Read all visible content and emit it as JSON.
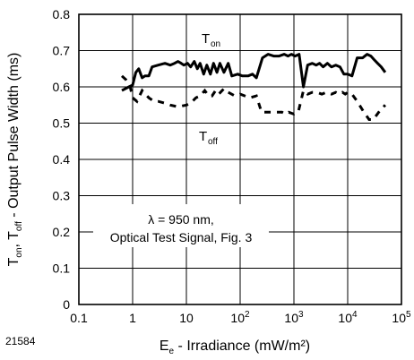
{
  "figure_number": "21584",
  "chart_data": {
    "type": "line",
    "title": "",
    "xlabel": {
      "symbol": "E",
      "sub": "e",
      "rest": " - Irradiance (mW/m²)"
    },
    "ylabel": {
      "p1": "T",
      "sub1": "on",
      "p2": ", T",
      "sub2": "off",
      "p3": " - Output Pulse Width (ms)"
    },
    "x_scale": "log",
    "xlim": [
      0.1,
      100000
    ],
    "ylim": [
      0,
      0.8
    ],
    "x_ticks": [
      {
        "value": 0.1,
        "base": "0.1",
        "exp": ""
      },
      {
        "value": 1,
        "base": "1",
        "exp": ""
      },
      {
        "value": 10,
        "base": "10",
        "exp": ""
      },
      {
        "value": 100,
        "base": "10",
        "exp": "2"
      },
      {
        "value": 1000,
        "base": "10",
        "exp": "3"
      },
      {
        "value": 10000,
        "base": "10",
        "exp": "4"
      },
      {
        "value": 100000,
        "base": "10",
        "exp": "5"
      }
    ],
    "y_ticks": [
      0,
      0.1,
      0.2,
      0.3,
      0.4,
      0.5,
      0.6,
      0.7,
      0.8
    ],
    "y_tick_labels": [
      "0",
      "0.1",
      "0.2",
      "0.3",
      "0.4",
      "0.5",
      "0.6",
      "0.7",
      "0.8"
    ],
    "grid": true,
    "annotation": {
      "line1": "λ = 950 nm,",
      "line2": "Optical Test Signal, Fig. 3"
    },
    "series": [
      {
        "label_main": "T",
        "label_sub": "on",
        "style": "solid",
        "color": "#000000",
        "x": [
          0.63,
          0.85,
          1.0,
          1.15,
          1.3,
          1.5,
          1.7,
          2.0,
          2.3,
          3.0,
          4.0,
          5.0,
          6.0,
          7.0,
          8.0,
          9.0,
          10.5,
          12.0,
          14.0,
          16.0,
          18.0,
          21.0,
          24.0,
          28.0,
          32.0,
          37.0,
          42.0,
          50.0,
          60.0,
          70.0,
          90.0,
          110.0,
          140.0,
          170.0,
          200.0,
          260.0,
          330.0,
          420.0,
          530.0,
          660.0,
          780.0,
          900.0,
          1050.0,
          1250.0,
          1500.0,
          1800.0,
          2200.0,
          2600.0,
          3000.0,
          3500.0,
          4200.0,
          5000.0,
          6000.0,
          7200.0,
          8500.0,
          10000.0,
          12000.0,
          15000.0,
          19000.0,
          23000.0,
          27000.0,
          31000.0,
          36000.0,
          42000.0,
          50000.0
        ],
        "y": [
          0.59,
          0.6,
          0.605,
          0.64,
          0.65,
          0.625,
          0.63,
          0.63,
          0.655,
          0.66,
          0.665,
          0.66,
          0.665,
          0.67,
          0.665,
          0.66,
          0.665,
          0.655,
          0.67,
          0.65,
          0.665,
          0.635,
          0.66,
          0.635,
          0.665,
          0.64,
          0.665,
          0.64,
          0.665,
          0.63,
          0.635,
          0.63,
          0.63,
          0.635,
          0.625,
          0.68,
          0.69,
          0.685,
          0.685,
          0.69,
          0.685,
          0.69,
          0.685,
          0.69,
          0.6,
          0.66,
          0.665,
          0.66,
          0.665,
          0.655,
          0.665,
          0.655,
          0.66,
          0.655,
          0.635,
          0.635,
          0.63,
          0.68,
          0.68,
          0.69,
          0.685,
          0.675,
          0.665,
          0.655,
          0.64
        ]
      },
      {
        "label_main": "T",
        "label_sub": "off",
        "style": "dashed",
        "color": "#000000",
        "x": [
          0.63,
          0.75,
          0.9,
          1.0,
          1.2,
          1.5,
          2.0,
          2.5,
          3.0,
          4.0,
          5.0,
          7.0,
          10.0,
          12.0,
          15.0,
          18.0,
          22.0,
          26.0,
          30.0,
          35.0,
          40.0,
          50.0,
          60.0,
          80.0,
          100.0,
          150.0,
          200.0,
          250.0,
          300.0,
          400.0,
          500.0,
          600.0,
          700.0,
          800.0,
          1000.0,
          1200.0,
          1500.0,
          1800.0,
          2200.0,
          2700.0,
          3300.0,
          4000.0,
          5000.0,
          6000.0,
          7000.0,
          8000.0,
          9000.0,
          10000.0,
          12000.0,
          15000.0,
          20000.0,
          25000.0,
          30000.0,
          40000.0,
          50000.0
        ],
        "y": [
          0.63,
          0.62,
          0.6,
          0.57,
          0.56,
          0.59,
          0.57,
          0.56,
          0.56,
          0.555,
          0.55,
          0.545,
          0.55,
          0.555,
          0.57,
          0.575,
          0.59,
          0.575,
          0.575,
          0.59,
          0.58,
          0.595,
          0.585,
          0.575,
          0.58,
          0.57,
          0.575,
          0.53,
          0.53,
          0.53,
          0.53,
          0.53,
          0.525,
          0.53,
          0.525,
          0.53,
          0.59,
          0.58,
          0.585,
          0.585,
          0.58,
          0.585,
          0.58,
          0.585,
          0.58,
          0.585,
          0.58,
          0.585,
          0.58,
          0.56,
          0.53,
          0.51,
          0.51,
          0.535,
          0.55
        ]
      }
    ]
  }
}
